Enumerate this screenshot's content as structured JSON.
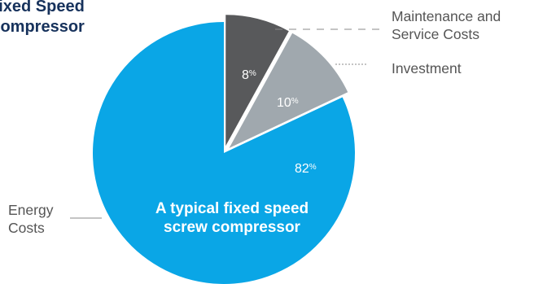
{
  "title": [
    "Fixed Speed",
    "Compressor"
  ],
  "caption": [
    "A typical fixed speed",
    "screw compressor"
  ],
  "legend": {
    "maintenance": [
      "Maintenance and",
      "Service Costs"
    ],
    "investment": "Investment",
    "energy": [
      "Energy",
      "Costs"
    ]
  },
  "colors": {
    "maintenance": "#58595b",
    "investment": "#a0a8ae",
    "energy": "#0aa6e6",
    "title": "#17325c",
    "leader": "#888888"
  },
  "chart_data": {
    "type": "pie",
    "categories": [
      "Maintenance and Service Costs",
      "Investment",
      "Energy Costs"
    ],
    "values": [
      8,
      10,
      82
    ],
    "value_labels": [
      "8",
      "10",
      "82"
    ],
    "unit": "%",
    "exploded": [
      "Maintenance and Service Costs",
      "Investment"
    ]
  }
}
